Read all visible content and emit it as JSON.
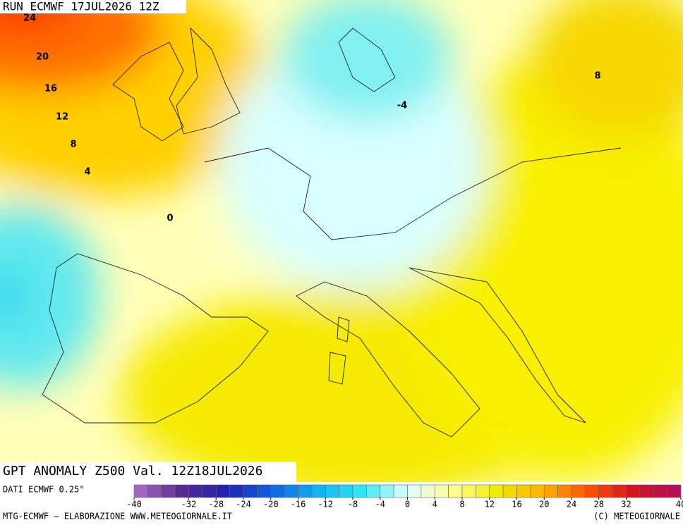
{
  "header": {
    "run": "RUN ECMWF 17JUL2026 12Z"
  },
  "map": {
    "title": "GPT ANOMALY Z500 Val. 12Z18JUL2026",
    "contour_labels": [
      24,
      20,
      16,
      12,
      8,
      4,
      0,
      -4,
      8
    ]
  },
  "legend": {
    "source": "DATI ECMWF 0.25°",
    "stops": [
      "#b070c8",
      "#5a2a90",
      "#2020b0",
      "#1060e0",
      "#10b0f0",
      "#30e8f0",
      "#e0ffff",
      "#ffff90",
      "#f0e800",
      "#ffb000",
      "#ff5000",
      "#d01020",
      "#b01060"
    ],
    "labels": [
      -40,
      -32,
      -28,
      -24,
      -20,
      -16,
      -12,
      -8,
      -4,
      0,
      4,
      8,
      12,
      16,
      20,
      24,
      28,
      32,
      40
    ],
    "range": [
      -40,
      40
    ]
  },
  "footer": {
    "left": "MTG-ECMWF – ELABORAZIONE WWW.METEOGIORNALE.IT",
    "right": "(C) METEOGIORNALE"
  }
}
